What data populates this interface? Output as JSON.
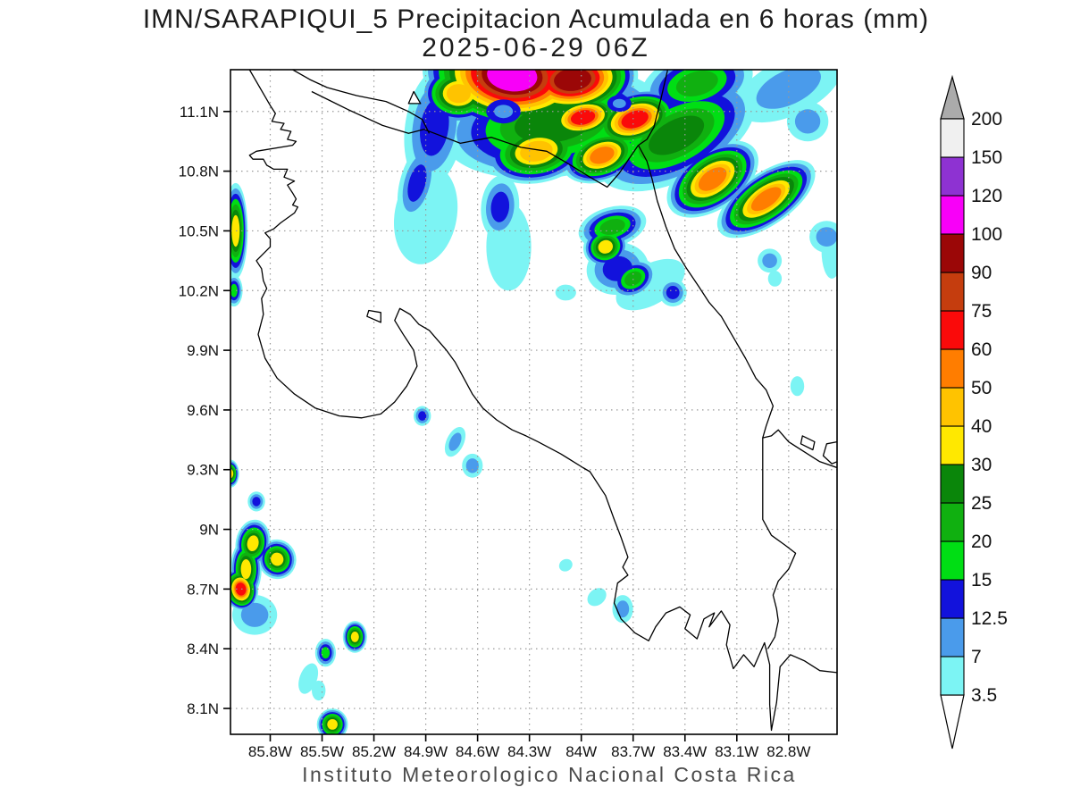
{
  "header": {
    "title": "IMN/SARAPIQUI_5 Precipitacion Acumulada en 6 horas (mm)",
    "subtitle": "2025-06-29 06Z"
  },
  "footer": {
    "text": "Instituto Meteorologico Nacional Costa Rica"
  },
  "chart_data": {
    "type": "heatmap",
    "title": "IMN/SARAPIQUI_5 Precipitacion Acumulada en 6 horas (mm)",
    "subtitle": "2025-06-29 06Z",
    "units": "mm",
    "variable": "6-hour accumulated precipitation",
    "x_axis": {
      "ticks": [
        "85.8W",
        "85.5W",
        "85.2W",
        "84.9W",
        "84.6W",
        "84.3W",
        "84W",
        "83.7W",
        "83.4W",
        "83.1W",
        "82.8W"
      ],
      "tick_lons": [
        85.8,
        85.5,
        85.2,
        84.9,
        84.6,
        84.3,
        84.0,
        83.7,
        83.4,
        83.1,
        82.8
      ]
    },
    "y_axis": {
      "ticks": [
        "11.1N",
        "10.8N",
        "10.5N",
        "10.2N",
        "9.9N",
        "9.6N",
        "9.3N",
        "9N",
        "8.7N",
        "8.4N",
        "8.1N"
      ],
      "tick_lats": [
        11.1,
        10.8,
        10.5,
        10.2,
        9.9,
        9.6,
        9.3,
        9.0,
        8.7,
        8.4,
        8.1
      ]
    },
    "map_bounds": {
      "lon_west": 86.03,
      "lon_east": 82.52,
      "lat_north": 11.31,
      "lat_south": 7.97
    },
    "levels": [
      3.5,
      7,
      12.5,
      15,
      20,
      25,
      30,
      40,
      50,
      60,
      75,
      90,
      100,
      120,
      150,
      200
    ],
    "level_colors": [
      "#7CF4F4",
      "#4A9BEB",
      "#1212DC",
      "#00DE14",
      "#10B010",
      "#0A860A",
      "#FFE800",
      "#FFC300",
      "#FF7D00",
      "#FA0A0A",
      "#C53D0E",
      "#9B0707",
      "#F800F8",
      "#8E32D2",
      "#F0F0F0"
    ],
    "colorbar": {
      "labels": [
        "200",
        "150",
        "120",
        "100",
        "90",
        "75",
        "60",
        "50",
        "40",
        "30",
        "25",
        "20",
        "15",
        "12.5",
        "7",
        "3.5"
      ],
      "over_color": "#ABABAB",
      "under_color": "#FFFFFF",
      "grid_color": "#999999"
    },
    "precip_cells": [
      [
        84.4,
        11.28,
        110,
        0.52,
        0.28,
        6
      ],
      [
        84.05,
        11.26,
        95,
        0.38,
        0.2,
        -6
      ],
      [
        83.99,
        11.07,
        65,
        0.24,
        0.12,
        -12
      ],
      [
        83.69,
        11.06,
        65,
        0.27,
        0.14,
        -18
      ],
      [
        83.24,
        10.76,
        55,
        0.3,
        0.15,
        -35
      ],
      [
        82.93,
        10.66,
        55,
        0.33,
        0.13,
        -35
      ],
      [
        84.71,
        11.19,
        42,
        0.22,
        0.15,
        0
      ],
      [
        84.26,
        10.9,
        42,
        0.3,
        0.16,
        -10
      ],
      [
        83.88,
        10.88,
        55,
        0.24,
        0.13,
        -20
      ],
      [
        84.16,
        11.04,
        26,
        0.65,
        0.27,
        -8
      ],
      [
        83.45,
        10.98,
        26,
        0.5,
        0.22,
        -28
      ],
      [
        83.33,
        11.24,
        21,
        0.33,
        0.16,
        -15
      ],
      [
        84.85,
        11.02,
        13,
        0.17,
        0.3,
        8
      ],
      [
        82.8,
        11.22,
        8,
        0.33,
        0.14,
        -25
      ],
      [
        82.69,
        11.05,
        8,
        0.12,
        0.1,
        0
      ],
      [
        82.55,
        10.4,
        4,
        0.06,
        0.14,
        0
      ],
      [
        82.58,
        10.47,
        8,
        0.1,
        0.08,
        0
      ],
      [
        84.95,
        10.74,
        13,
        0.1,
        0.2,
        15
      ],
      [
        84.9,
        10.58,
        4,
        0.18,
        0.25,
        10
      ],
      [
        84.47,
        10.62,
        13,
        0.11,
        0.16,
        5
      ],
      [
        84.42,
        10.42,
        4,
        0.13,
        0.22,
        0
      ],
      [
        84.09,
        10.19,
        4,
        0.06,
        0.04,
        0
      ],
      [
        83.82,
        10.52,
        21,
        0.2,
        0.1,
        -15
      ],
      [
        83.86,
        10.42,
        32,
        0.13,
        0.1,
        -20
      ],
      [
        83.79,
        10.31,
        13,
        0.18,
        0.13,
        -10
      ],
      [
        83.7,
        10.26,
        21,
        0.14,
        0.09,
        -30
      ],
      [
        83.47,
        10.19,
        13,
        0.08,
        0.07,
        0
      ],
      [
        83.6,
        10.23,
        4,
        0.22,
        0.1,
        -30
      ],
      [
        82.91,
        10.35,
        8,
        0.07,
        0.06,
        0
      ],
      [
        82.88,
        10.26,
        4,
        0.04,
        0.04,
        0
      ],
      [
        82.75,
        9.72,
        4,
        0.04,
        0.05,
        0
      ],
      [
        86.0,
        10.5,
        32,
        0.07,
        0.24,
        0
      ],
      [
        86.01,
        10.2,
        16,
        0.05,
        0.08,
        0
      ],
      [
        85.99,
        10.58,
        13,
        0.05,
        0.05,
        0
      ],
      [
        86.03,
        9.28,
        32,
        0.05,
        0.07,
        0
      ],
      [
        85.88,
        9.14,
        13,
        0.05,
        0.05,
        0
      ],
      [
        85.9,
        8.93,
        32,
        0.1,
        0.12,
        10
      ],
      [
        85.94,
        8.8,
        32,
        0.09,
        0.15,
        0
      ],
      [
        85.76,
        8.85,
        32,
        0.11,
        0.1,
        -20
      ],
      [
        85.97,
        8.7,
        65,
        0.1,
        0.11,
        -10
      ],
      [
        85.89,
        8.57,
        8,
        0.13,
        0.1,
        0
      ],
      [
        85.48,
        8.38,
        16,
        0.06,
        0.07,
        0
      ],
      [
        85.31,
        8.46,
        32,
        0.07,
        0.08,
        0
      ],
      [
        85.58,
        8.25,
        4,
        0.05,
        0.08,
        20
      ],
      [
        85.52,
        8.19,
        4,
        0.04,
        0.05,
        0
      ],
      [
        85.44,
        8.02,
        32,
        0.09,
        0.08,
        0
      ],
      [
        84.92,
        9.57,
        13,
        0.05,
        0.05,
        0
      ],
      [
        84.73,
        9.44,
        8,
        0.05,
        0.08,
        25
      ],
      [
        84.63,
        9.32,
        8,
        0.06,
        0.06,
        0
      ],
      [
        84.09,
        8.82,
        4,
        0.04,
        0.03,
        -30
      ],
      [
        83.91,
        8.66,
        4,
        0.06,
        0.04,
        -40
      ],
      [
        83.76,
        8.6,
        8,
        0.06,
        0.07,
        0
      ]
    ],
    "blue_pockets": [
      [
        84.45,
        11.1,
        0.1
      ],
      [
        83.78,
        11.14,
        0.07
      ]
    ],
    "coastlines": {
      "paths": [
        [
          [
            85.92,
            11.31
          ],
          [
            85.8,
            11.13
          ],
          [
            85.77,
            11.09
          ],
          [
            85.79,
            11.05
          ],
          [
            85.72,
            11.04
          ],
          [
            85.74,
            11.01
          ],
          [
            85.68,
            11.0
          ],
          [
            85.7,
            10.96
          ],
          [
            85.65,
            10.95
          ],
          [
            85.67,
            10.93
          ],
          [
            85.88,
            10.9
          ],
          [
            85.92,
            10.88
          ],
          [
            85.9,
            10.86
          ],
          [
            85.84,
            10.86
          ],
          [
            85.82,
            10.83
          ],
          [
            85.78,
            10.81
          ],
          [
            85.7,
            10.81
          ],
          [
            85.72,
            10.77
          ],
          [
            85.66,
            10.75
          ],
          [
            85.7,
            10.73
          ],
          [
            85.67,
            10.69
          ],
          [
            85.65,
            10.66
          ],
          [
            85.67,
            10.63
          ],
          [
            85.64,
            10.62
          ],
          [
            85.66,
            10.59
          ],
          [
            85.74,
            10.54
          ],
          [
            85.78,
            10.51
          ],
          [
            85.83,
            10.49
          ],
          [
            85.8,
            10.46
          ],
          [
            85.8,
            10.42
          ],
          [
            85.88,
            10.35
          ],
          [
            85.85,
            10.31
          ],
          [
            85.84,
            10.25
          ],
          [
            85.82,
            10.21
          ],
          [
            85.85,
            10.16
          ],
          [
            85.84,
            10.08
          ],
          [
            85.87,
            9.98
          ],
          [
            85.83,
            9.86
          ],
          [
            85.76,
            9.76
          ],
          [
            85.66,
            9.68
          ],
          [
            85.54,
            9.61
          ],
          [
            85.4,
            9.57
          ],
          [
            85.27,
            9.56
          ],
          [
            85.16,
            9.58
          ],
          [
            85.08,
            9.64
          ],
          [
            85.01,
            9.72
          ],
          [
            84.95,
            9.82
          ],
          [
            84.97,
            9.9
          ],
          [
            85.03,
            9.98
          ],
          [
            85.08,
            10.05
          ],
          [
            85.05,
            10.11
          ],
          [
            84.99,
            10.08
          ],
          [
            84.94,
            10.03
          ],
          [
            84.88,
            10.0
          ],
          [
            84.83,
            9.95
          ],
          [
            84.78,
            9.9
          ],
          [
            84.73,
            9.84
          ],
          [
            84.68,
            9.76
          ],
          [
            84.63,
            9.68
          ],
          [
            84.57,
            9.61
          ],
          [
            84.49,
            9.55
          ],
          [
            84.4,
            9.5
          ],
          [
            84.32,
            9.47
          ],
          [
            84.25,
            9.44
          ],
          [
            84.12,
            9.38
          ],
          [
            83.99,
            9.31
          ],
          [
            83.95,
            9.29
          ],
          [
            83.86,
            9.17
          ],
          [
            83.81,
            9.05
          ],
          [
            83.77,
            8.96
          ],
          [
            83.73,
            8.86
          ],
          [
            83.76,
            8.81
          ],
          [
            83.73,
            8.77
          ],
          [
            83.79,
            8.73
          ],
          [
            83.81,
            8.63
          ],
          [
            83.77,
            8.55
          ],
          [
            83.69,
            8.48
          ],
          [
            83.61,
            8.44
          ],
          [
            83.57,
            8.51
          ],
          [
            83.51,
            8.58
          ],
          [
            83.43,
            8.61
          ],
          [
            83.37,
            8.57
          ],
          [
            83.4,
            8.5
          ],
          [
            83.33,
            8.45
          ],
          [
            83.29,
            8.55
          ],
          [
            83.23,
            8.58
          ],
          [
            83.26,
            8.51
          ],
          [
            83.19,
            8.59
          ],
          [
            83.14,
            8.52
          ],
          [
            83.16,
            8.42
          ],
          [
            83.12,
            8.3
          ],
          [
            83.06,
            8.37
          ],
          [
            83.0,
            8.31
          ],
          [
            82.94,
            8.43
          ],
          [
            82.91,
            8.32
          ],
          [
            82.91,
            8.12
          ],
          [
            82.9,
            7.99
          ],
          [
            82.87,
            8.13
          ],
          [
            82.85,
            8.31
          ],
          [
            82.79,
            8.37
          ],
          [
            82.71,
            8.34
          ],
          [
            82.62,
            8.29
          ],
          [
            82.52,
            8.28
          ]
        ],
        [
          [
            85.67,
            11.31
          ],
          [
            85.57,
            11.26
          ],
          [
            85.47,
            11.22
          ],
          [
            85.3,
            11.18
          ],
          [
            85.13,
            11.15
          ],
          [
            85.0,
            11.1
          ],
          [
            84.92,
            11.06
          ],
          [
            84.88,
            10.99
          ]
        ],
        [
          [
            85.56,
            11.2
          ],
          [
            85.35,
            11.11
          ],
          [
            85.15,
            11.03
          ],
          [
            85.0,
            10.99
          ],
          [
            84.91,
            11.01
          ],
          [
            84.7,
            10.94
          ],
          [
            84.52,
            10.97
          ],
          [
            84.35,
            10.92
          ],
          [
            84.2,
            10.9
          ],
          [
            84.08,
            10.84
          ],
          [
            83.95,
            10.77
          ],
          [
            83.85,
            10.72
          ],
          [
            83.78,
            10.79
          ],
          [
            83.71,
            10.88
          ],
          [
            83.67,
            10.93
          ]
        ],
        [
          [
            83.5,
            11.31
          ],
          [
            83.54,
            11.16
          ],
          [
            83.58,
            11.02
          ],
          [
            83.62,
            10.96
          ],
          [
            83.67,
            10.93
          ]
        ],
        [
          [
            83.67,
            10.93
          ],
          [
            83.62,
            10.85
          ],
          [
            83.59,
            10.76
          ],
          [
            83.56,
            10.65
          ],
          [
            83.51,
            10.52
          ],
          [
            83.46,
            10.41
          ],
          [
            83.39,
            10.31
          ],
          [
            83.32,
            10.22
          ],
          [
            83.26,
            10.14
          ],
          [
            83.22,
            10.1
          ],
          [
            83.19,
            10.07
          ],
          [
            83.13,
            9.98
          ],
          [
            83.05,
            9.86
          ],
          [
            83.02,
            9.81
          ],
          [
            82.99,
            9.76
          ],
          [
            82.93,
            9.7
          ],
          [
            82.89,
            9.62
          ],
          [
            82.93,
            9.52
          ],
          [
            82.95,
            9.46
          ],
          [
            82.9,
            9.47
          ],
          [
            82.86,
            9.5
          ],
          [
            82.8,
            9.44
          ],
          [
            82.71,
            9.39
          ],
          [
            82.62,
            9.34
          ],
          [
            82.52,
            9.31
          ]
        ],
        [
          [
            82.95,
            9.46
          ],
          [
            82.95,
            9.05
          ],
          [
            82.9,
            8.97
          ],
          [
            82.82,
            8.92
          ],
          [
            82.76,
            8.88
          ],
          [
            82.8,
            8.8
          ],
          [
            82.86,
            8.74
          ],
          [
            82.89,
            8.67
          ],
          [
            82.87,
            8.6
          ],
          [
            82.86,
            8.54
          ],
          [
            82.88,
            8.46
          ],
          [
            82.92,
            8.4
          ]
        ],
        [
          [
            82.52,
            9.44
          ],
          [
            82.58,
            9.43
          ],
          [
            82.6,
            9.37
          ],
          [
            82.55,
            9.33
          ],
          [
            82.52,
            9.34
          ]
        ]
      ],
      "islands": [
        [
          [
            84.97,
            11.2
          ],
          [
            84.93,
            11.14
          ],
          [
            85.0,
            11.14
          ]
        ],
        [
          [
            85.23,
            10.1
          ],
          [
            85.16,
            10.09
          ],
          [
            85.16,
            10.04
          ],
          [
            85.24,
            10.07
          ]
        ],
        [
          [
            82.72,
            9.47
          ],
          [
            82.65,
            9.44
          ],
          [
            82.66,
            9.4
          ],
          [
            82.73,
            9.43
          ]
        ]
      ]
    }
  }
}
